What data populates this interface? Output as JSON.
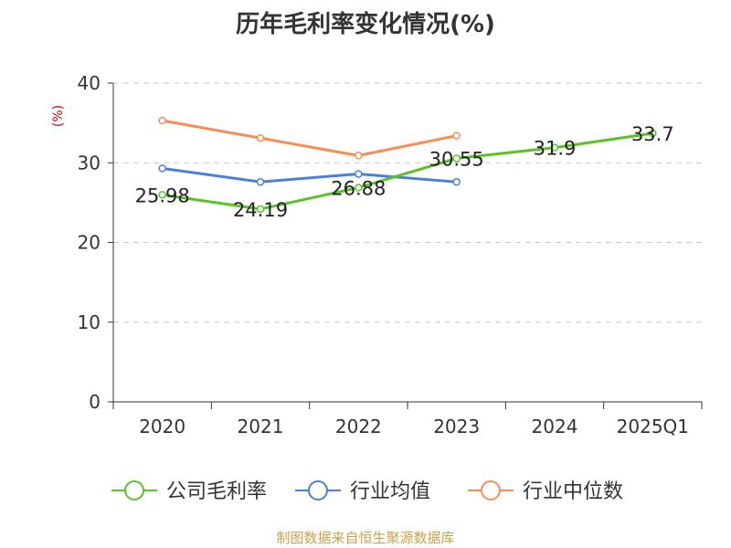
{
  "chart_data": {
    "type": "line",
    "title": "历年毛利率变化情况(%)",
    "ylabel": "(%)",
    "xlabel": "",
    "ylim": [
      0,
      40
    ],
    "yticks": [
      0,
      10,
      20,
      30,
      40
    ],
    "grid": true,
    "legend_position": "bottom",
    "categories": [
      "2020",
      "2021",
      "2022",
      "2023",
      "2024",
      "2025Q1"
    ],
    "series": [
      {
        "name": "公司毛利率",
        "color": "#5bc226",
        "values": [
          25.98,
          24.19,
          26.88,
          30.55,
          31.9,
          33.7
        ],
        "labels": [
          "25.98",
          "24.19",
          "26.88",
          "30.55",
          "31.9",
          "33.7"
        ]
      },
      {
        "name": "行业均值",
        "color": "#4a7fd9",
        "values": [
          29.3,
          27.6,
          28.6,
          27.6,
          null,
          null
        ]
      },
      {
        "name": "行业中位数",
        "color": "#f78d55",
        "values": [
          35.3,
          33.1,
          30.9,
          33.4,
          null,
          null
        ]
      }
    ]
  },
  "source": "制图数据来自恒生聚源数据库"
}
